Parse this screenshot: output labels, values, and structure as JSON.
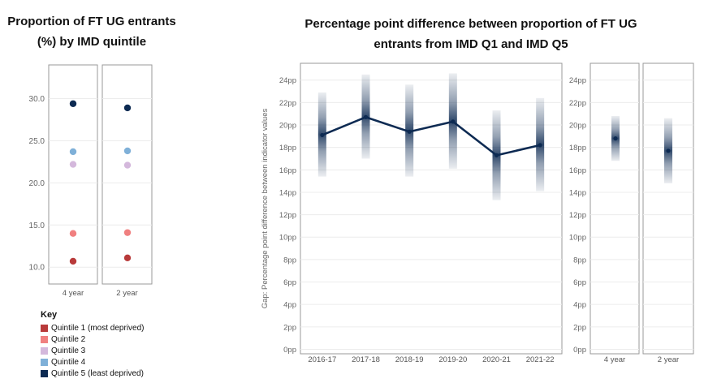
{
  "titles": {
    "left": "Proportion of FT UG entrants (%) by IMD quintile",
    "right": "Percentage point difference between proportion of FT UG entrants from IMD Q1 and IMD Q5"
  },
  "key": {
    "title": "Key",
    "items": [
      {
        "label": "Quintile 1 (most deprived)",
        "color": "#b83a3a"
      },
      {
        "label": "Quintile 2",
        "color": "#f08080"
      },
      {
        "label": "Quintile 3",
        "color": "#d4b8dc"
      },
      {
        "label": "Quintile 4",
        "color": "#7fb0d8"
      },
      {
        "label": "Quintile 5 (least deprived)",
        "color": "#0d2a52"
      }
    ]
  },
  "chart_data": [
    {
      "type": "scatter",
      "title": "Proportion of FT UG entrants (%) by IMD quintile",
      "categories": [
        "4 year",
        "2 year"
      ],
      "yticks": [
        "10.0",
        "15.0",
        "20.0",
        "25.0",
        "30.0"
      ],
      "ylim": [
        8,
        34
      ],
      "series": [
        {
          "name": "Quintile 1 (most deprived)",
          "values": [
            10.7,
            11.1
          ],
          "color": "#b83a3a"
        },
        {
          "name": "Quintile 2",
          "values": [
            14.0,
            14.1
          ],
          "color": "#f08080"
        },
        {
          "name": "Quintile 3",
          "values": [
            22.2,
            22.1
          ],
          "color": "#d4b8dc"
        },
        {
          "name": "Quintile 4",
          "values": [
            23.7,
            23.8
          ],
          "color": "#7fb0d8"
        },
        {
          "name": "Quintile 5 (least deprived)",
          "values": [
            29.4,
            28.9
          ],
          "color": "#0d2a52"
        }
      ]
    },
    {
      "type": "line",
      "title": "Percentage point difference between proportion of FT UG entrants from IMD Q1 and IMD Q5",
      "ylabel": "Gap: Percentage point difference between indicator values",
      "categories": [
        "2016-17",
        "2017-18",
        "2018-19",
        "2019-20",
        "2020-21",
        "2021-22"
      ],
      "values": [
        19.1,
        20.7,
        19.4,
        20.3,
        17.3,
        18.2
      ],
      "range_low": [
        15.4,
        17.0,
        15.4,
        16.1,
        13.3,
        14.1
      ],
      "range_high": [
        22.9,
        24.5,
        23.6,
        24.6,
        21.3,
        22.4
      ],
      "yticks": [
        "0pp",
        "2pp",
        "4pp",
        "6pp",
        "8pp",
        "10pp",
        "12pp",
        "14pp",
        "16pp",
        "18pp",
        "20pp",
        "22pp",
        "24pp"
      ],
      "ylim": [
        -0.4,
        25.5
      ],
      "color": "#0d2a52"
    },
    {
      "type": "scatter",
      "categories": [
        "4 year",
        "2 year"
      ],
      "values": [
        18.8,
        17.7
      ],
      "range_low": [
        16.8,
        14.8
      ],
      "range_high": [
        20.8,
        20.6
      ],
      "yticks": [
        "0pp",
        "2pp",
        "4pp",
        "6pp",
        "8pp",
        "10pp",
        "12pp",
        "14pp",
        "16pp",
        "18pp",
        "20pp",
        "22pp",
        "24pp"
      ],
      "ylim": [
        -0.4,
        25.5
      ],
      "color": "#0d2a52"
    }
  ]
}
